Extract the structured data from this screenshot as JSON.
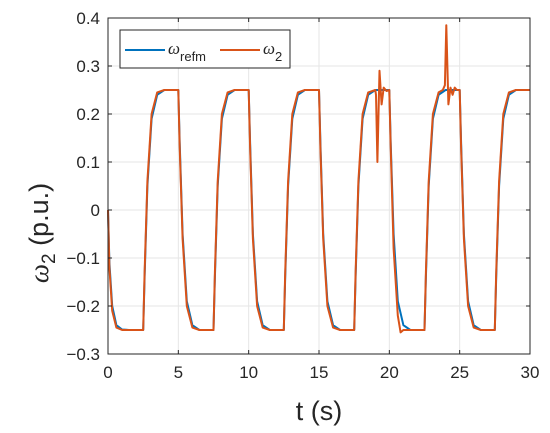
{
  "chart_data": {
    "type": "line",
    "xlabel": "t (s)",
    "ylabel": {
      "symbol": "ω",
      "sub": "2",
      "unit": " (p.u.)"
    },
    "xlim": [
      0,
      30
    ],
    "ylim": [
      -0.3,
      0.4
    ],
    "xticks": [
      0,
      5,
      10,
      15,
      20,
      25,
      30
    ],
    "yticks": [
      -0.3,
      -0.2,
      -0.1,
      0,
      0.1,
      0.2,
      0.3,
      0.4
    ],
    "xtick_labels": [
      "0",
      "5",
      "10",
      "15",
      "20",
      "25",
      "30"
    ],
    "ytick_labels": [
      "−0.3",
      "−0.2",
      "−0.1",
      "0",
      "0.1",
      "0.2",
      "0.3",
      "0.4"
    ],
    "grid": true,
    "legend_position": "top-left",
    "series": [
      {
        "legend_symbol": "ω",
        "legend_sub": "refm",
        "color": "#0072BD",
        "x": [
          0,
          0.1,
          0.3,
          0.6,
          1.0,
          1.5,
          2.5,
          2.6,
          2.8,
          3.1,
          3.5,
          4.0,
          5.0,
          5.1,
          5.3,
          5.6,
          6.0,
          6.5,
          7.5,
          7.6,
          7.8,
          8.1,
          8.5,
          9.0,
          10.0,
          10.1,
          10.3,
          10.6,
          11.0,
          11.5,
          12.5,
          12.6,
          12.8,
          13.1,
          13.5,
          14.0,
          15.0,
          15.1,
          15.3,
          15.6,
          16.0,
          16.5,
          17.5,
          17.6,
          17.8,
          18.1,
          18.5,
          19.0,
          20.0,
          20.1,
          20.3,
          20.6,
          21.0,
          21.5,
          22.5,
          22.6,
          22.8,
          23.1,
          23.5,
          24.0,
          25.0,
          25.1,
          25.3,
          25.6,
          26.0,
          26.5,
          27.5,
          27.6,
          27.8,
          28.1,
          28.5,
          29.0,
          30.0
        ],
        "y": [
          0,
          -0.11,
          -0.2,
          -0.24,
          -0.249,
          -0.25,
          -0.25,
          -0.14,
          0.05,
          0.19,
          0.24,
          0.25,
          0.25,
          0.14,
          -0.05,
          -0.19,
          -0.24,
          -0.25,
          -0.25,
          -0.14,
          0.05,
          0.19,
          0.24,
          0.25,
          0.25,
          0.14,
          -0.05,
          -0.19,
          -0.24,
          -0.25,
          -0.25,
          -0.14,
          0.05,
          0.19,
          0.24,
          0.25,
          0.25,
          0.14,
          -0.05,
          -0.19,
          -0.24,
          -0.25,
          -0.25,
          -0.14,
          0.05,
          0.19,
          0.24,
          0.25,
          0.25,
          0.14,
          -0.05,
          -0.19,
          -0.24,
          -0.25,
          -0.25,
          -0.14,
          0.05,
          0.19,
          0.24,
          0.25,
          0.25,
          0.14,
          -0.05,
          -0.19,
          -0.24,
          -0.25,
          -0.25,
          -0.14,
          0.05,
          0.19,
          0.24,
          0.25,
          0.25
        ]
      },
      {
        "legend_symbol": "ω",
        "legend_sub": "2",
        "color": "#D95319",
        "x": [
          0,
          0.1,
          0.3,
          0.6,
          1.0,
          1.5,
          2.5,
          2.6,
          2.8,
          3.1,
          3.5,
          4.0,
          5.0,
          5.1,
          5.3,
          5.6,
          6.0,
          6.5,
          7.5,
          7.6,
          7.8,
          8.1,
          8.5,
          9.0,
          10.0,
          10.1,
          10.3,
          10.6,
          11.0,
          11.5,
          12.5,
          12.6,
          12.8,
          13.1,
          13.5,
          14.0,
          15.0,
          15.1,
          15.3,
          15.6,
          16.0,
          16.5,
          17.5,
          17.6,
          17.8,
          18.1,
          18.5,
          19.0,
          19.05,
          19.15,
          19.3,
          19.45,
          19.6,
          19.8,
          20.0,
          20.1,
          20.3,
          20.6,
          20.8,
          21.0,
          21.5,
          22.5,
          22.6,
          22.8,
          23.1,
          23.5,
          23.8,
          23.95,
          24.05,
          24.2,
          24.35,
          24.5,
          24.65,
          24.8,
          25.0,
          25.1,
          25.3,
          25.6,
          26.0,
          26.5,
          27.5,
          27.6,
          27.8,
          28.1,
          28.5,
          29.0,
          30.0
        ],
        "y": [
          0,
          -0.12,
          -0.21,
          -0.245,
          -0.25,
          -0.25,
          -0.25,
          -0.13,
          0.06,
          0.2,
          0.245,
          0.25,
          0.25,
          0.13,
          -0.06,
          -0.2,
          -0.245,
          -0.25,
          -0.25,
          -0.13,
          0.06,
          0.2,
          0.245,
          0.25,
          0.25,
          0.13,
          -0.06,
          -0.2,
          -0.245,
          -0.25,
          -0.25,
          -0.13,
          0.06,
          0.2,
          0.245,
          0.25,
          0.25,
          0.13,
          -0.06,
          -0.2,
          -0.245,
          -0.25,
          -0.25,
          -0.13,
          0.06,
          0.2,
          0.245,
          0.25,
          0.24,
          0.1,
          0.29,
          0.22,
          0.255,
          0.248,
          0.25,
          0.13,
          -0.08,
          -0.22,
          -0.255,
          -0.25,
          -0.25,
          -0.25,
          -0.13,
          0.06,
          0.2,
          0.245,
          0.25,
          0.26,
          0.385,
          0.22,
          0.255,
          0.24,
          0.255,
          0.25,
          0.25,
          0.13,
          -0.06,
          -0.2,
          -0.245,
          -0.25,
          -0.25,
          -0.13,
          0.06,
          0.2,
          0.245,
          0.25,
          0.25
        ]
      }
    ]
  }
}
